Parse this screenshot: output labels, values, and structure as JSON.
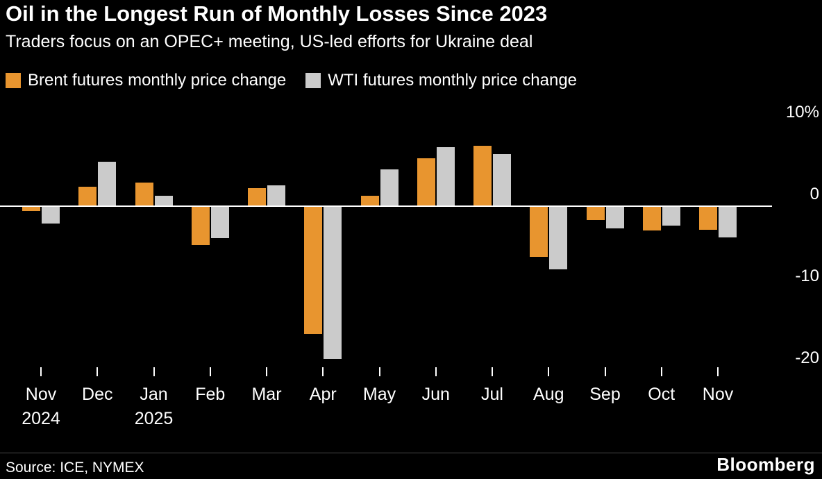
{
  "header": {
    "title": "Oil in the Longest Run of Monthly Losses Since 2023",
    "subtitle": "Traders focus on an OPEC+ meeting, US-led efforts for Ukraine deal"
  },
  "legend": {
    "brent_label": "Brent futures monthly price change",
    "wti_label": "WTI futures monthly price change"
  },
  "footer": {
    "source": "Source: ICE, NYMEX",
    "brand": "Bloomberg"
  },
  "colors": {
    "brent": "#E8952F",
    "wti": "#CBCBCB",
    "background": "#000000",
    "text": "#FFFFFF",
    "axis": "#FFFFFF"
  },
  "chart_data": {
    "type": "bar",
    "categories": [
      "Nov",
      "Dec",
      "Jan",
      "Feb",
      "Mar",
      "Apr",
      "May",
      "Jun",
      "Jul",
      "Aug",
      "Sep",
      "Oct",
      "Nov"
    ],
    "year_labels": [
      {
        "label": "2024",
        "category_index": 0
      },
      {
        "label": "2025",
        "category_index": 2
      }
    ],
    "series": [
      {
        "name": "Brent futures monthly price change",
        "color": "#E8952F",
        "values": [
          -0.5,
          2.3,
          2.8,
          -4.7,
          2.1,
          -15.5,
          1.2,
          5.8,
          7.3,
          -6.1,
          -1.6,
          -2.9,
          -2.8
        ]
      },
      {
        "name": "WTI futures monthly price change",
        "color": "#CBCBCB",
        "values": [
          -2.0,
          5.3,
          1.2,
          -3.8,
          2.5,
          -18.6,
          4.4,
          7.1,
          6.3,
          -7.6,
          -2.6,
          -2.3,
          -3.7
        ]
      }
    ],
    "title": "Oil in the Longest Run of Monthly Losses Since 2023",
    "xlabel": "",
    "ylabel": "%",
    "y_ticks": [
      {
        "value": 10,
        "label": "10%"
      },
      {
        "value": 0,
        "label": "0"
      },
      {
        "value": -10,
        "label": "-10"
      },
      {
        "value": -20,
        "label": "-20"
      }
    ],
    "ylim": [
      -22,
      12
    ],
    "grid": false,
    "legend_position": "top"
  }
}
